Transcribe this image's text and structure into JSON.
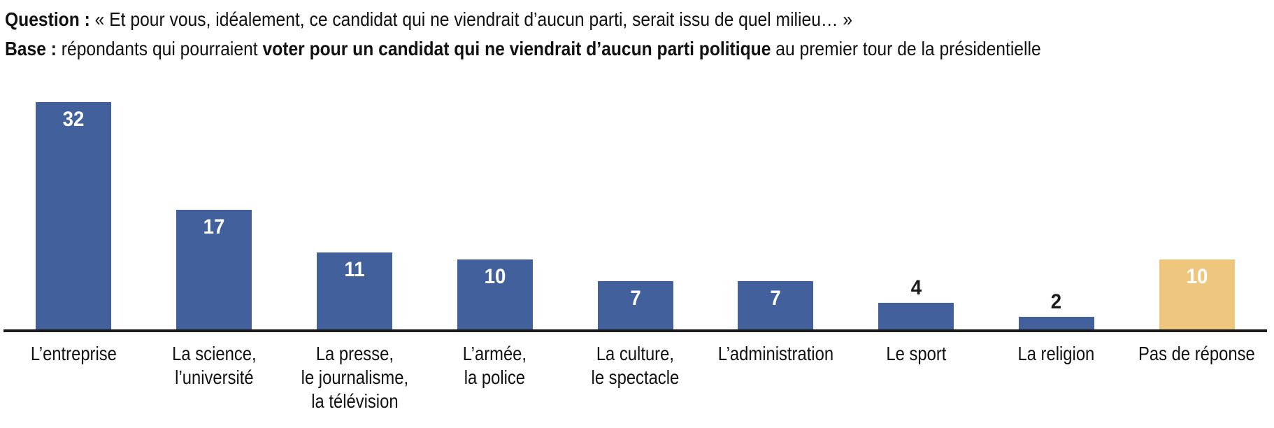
{
  "header": {
    "line1_bold": "Question :",
    "line1_rest": " « Et pour vous, idéalement, ce candidat qui ne viendrait d’aucun parti, serait issu de quel milieu… »",
    "line2_bold1": "Base :",
    "line2_rest1": " répondants qui pourraient ",
    "line2_bold2": "voter pour un candidat qui ne viendrait d’aucun parti politique",
    "line2_rest2": " au premier tour de la présidentielle"
  },
  "chart_data": {
    "type": "bar",
    "title": "",
    "xlabel": "",
    "ylabel": "",
    "grid": false,
    "legend": "none",
    "ylim": [
      0,
      32
    ],
    "categories": [
      "L’entreprise",
      "La science,\nl’université",
      "La presse,\nle journalisme,\nla télévision",
      "L’armée,\nla police",
      "La culture,\nle spectacle",
      "L’administration",
      "Le sport",
      "La religion",
      "Pas de réponse"
    ],
    "values": [
      32,
      17,
      11,
      10,
      7,
      7,
      4,
      2,
      10
    ],
    "value_label_positions": [
      "inside",
      "inside",
      "inside",
      "inside",
      "inside",
      "inside",
      "above",
      "above",
      "inside"
    ],
    "bar_colors": [
      "#42609c",
      "#42609c",
      "#42609c",
      "#42609c",
      "#42609c",
      "#42609c",
      "#42609c",
      "#42609c",
      "#eec67d"
    ],
    "colors": {
      "bar_default": "#42609c",
      "bar_no_answer": "#eec67d",
      "value_label_inside": "#ffffff",
      "value_label_above": "#1a1a1a",
      "axis": "#1c1c1c",
      "text": "#111111"
    }
  }
}
